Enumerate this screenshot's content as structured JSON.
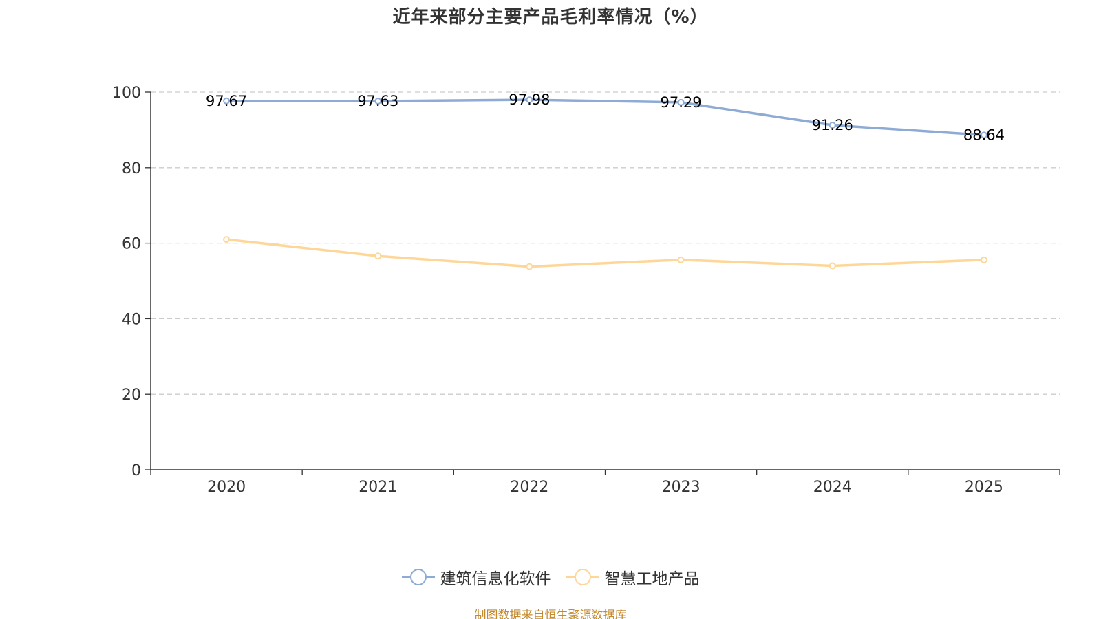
{
  "colors": {
    "series1": "#8eabd6",
    "series2": "#fdd698",
    "axis": "#333333",
    "grid": "#cccccc",
    "source": "#c48a2c"
  },
  "source_text": "制图数据来自恒生聚源数据库",
  "chart_data": {
    "type": "line",
    "title": "近年来部分主要产品毛利率情况（%）",
    "categories": [
      "2020",
      "2021",
      "2022",
      "2023",
      "2024",
      "2025"
    ],
    "ylim": [
      0,
      100
    ],
    "yticks": [
      0,
      20,
      40,
      60,
      80,
      100
    ],
    "grid": true,
    "legend_position": "bottom",
    "series": [
      {
        "name": "建筑信息化软件",
        "values": [
          97.67,
          97.63,
          97.98,
          97.29,
          91.26,
          88.64
        ],
        "labels": [
          "97.67",
          "97.63",
          "97.98",
          "97.29",
          "91.26",
          "88.64"
        ],
        "show_labels": true
      },
      {
        "name": "智慧工地产品",
        "values": [
          61.0,
          56.6,
          53.8,
          55.6,
          54.0,
          55.6
        ],
        "show_labels": false
      }
    ]
  }
}
